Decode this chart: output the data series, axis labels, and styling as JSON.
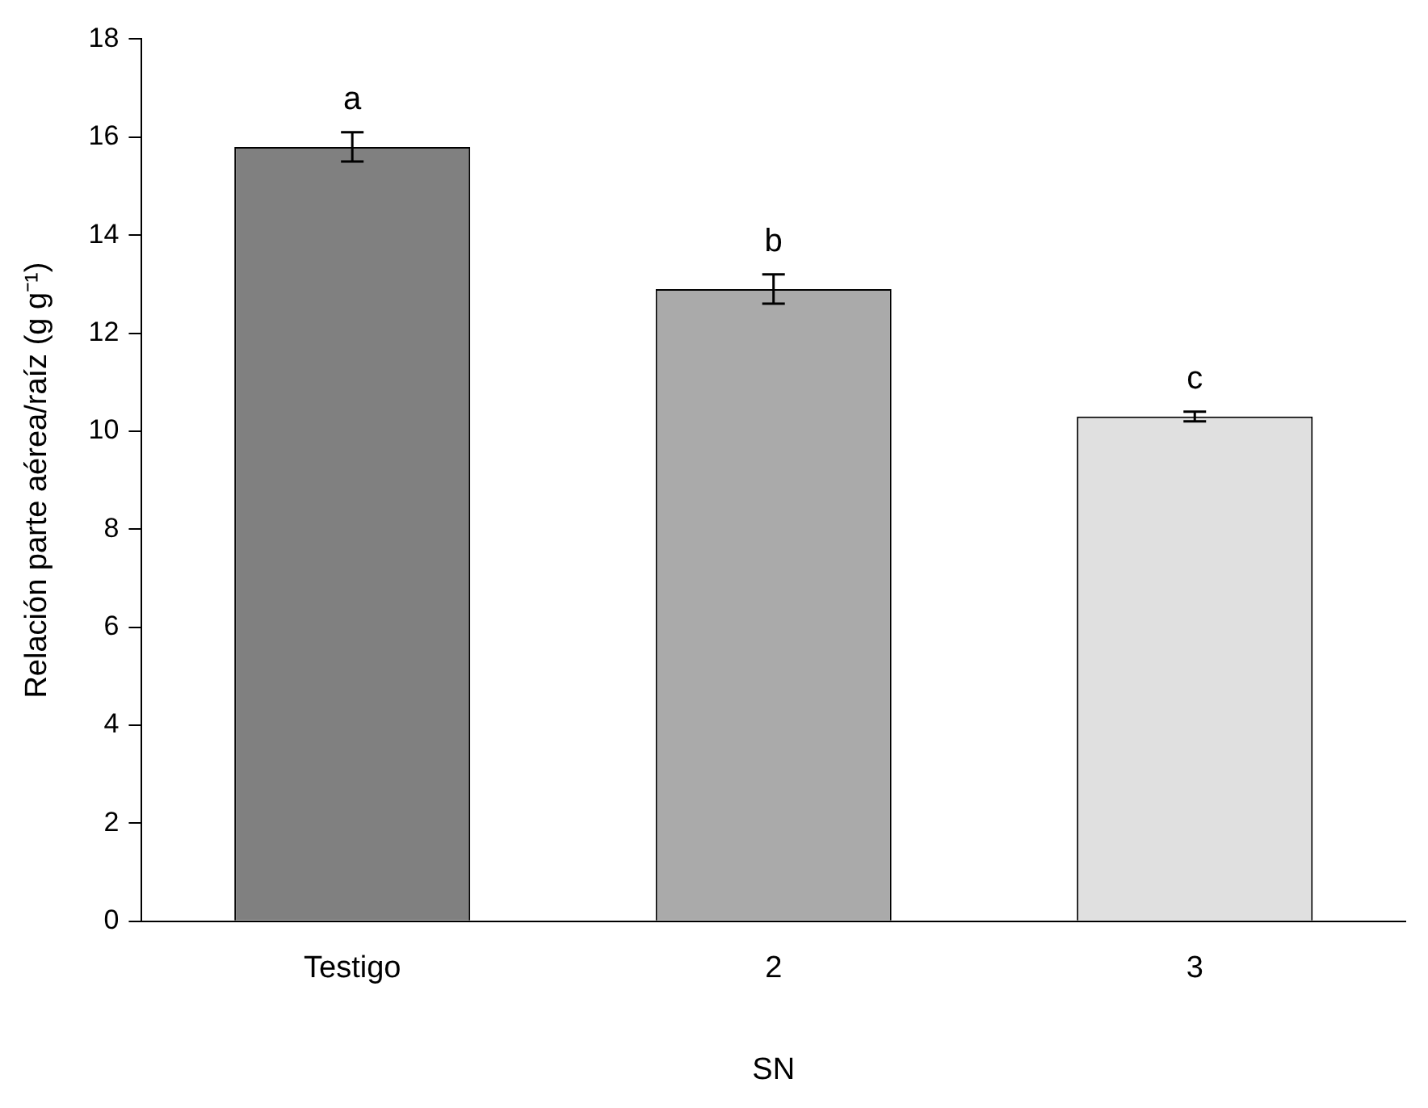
{
  "chart_data": {
    "type": "bar",
    "xlabel": "SN",
    "ylabel": "Relación parte aérea/raíz (g g⁻¹)",
    "categories": [
      "Testigo",
      "2",
      "3"
    ],
    "values": [
      15.8,
      12.9,
      10.3
    ],
    "errors": [
      0.3,
      0.3,
      0.1
    ],
    "colors": [
      "#808080",
      "#aaaaaa",
      "#e0e0e0"
    ],
    "ylim": [
      0,
      18
    ],
    "yticks": [
      0,
      2,
      4,
      6,
      8,
      10,
      12,
      14,
      16,
      18
    ],
    "grid": false,
    "legend": false,
    "annotations": [
      "a",
      "b",
      "c"
    ]
  }
}
